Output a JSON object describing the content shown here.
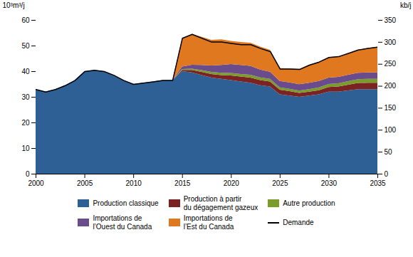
{
  "chart_data": {
    "type": "area",
    "stacked": true,
    "grid": false,
    "legend": "bottom",
    "ylabel": "10³m³/j",
    "y2label": "kb/j",
    "x": [
      2000,
      2001,
      2002,
      2003,
      2004,
      2005,
      2006,
      2007,
      2008,
      2009,
      2010,
      2011,
      2012,
      2013,
      2014,
      2015,
      2016,
      2017,
      2018,
      2019,
      2020,
      2021,
      2022,
      2023,
      2024,
      2025,
      2026,
      2027,
      2028,
      2029,
      2030,
      2031,
      2032,
      2033,
      2034,
      2035
    ],
    "xlim": [
      2000,
      2035
    ],
    "xticks": [
      2000,
      2005,
      2010,
      2015,
      2020,
      2025,
      2030,
      2035
    ],
    "ylim": [
      0,
      60
    ],
    "yticks": [
      0,
      10,
      20,
      30,
      40,
      50,
      60
    ],
    "y2lim": [
      0,
      350
    ],
    "y2ticks": [
      0,
      50,
      100,
      150,
      200,
      250,
      300,
      350
    ],
    "series": [
      {
        "name": "Production classique",
        "color": "#2E6096",
        "values": [
          33.0,
          32.0,
          33.0,
          34.5,
          36.5,
          40.0,
          40.5,
          40.0,
          38.5,
          36.5,
          35.0,
          35.5,
          36.0,
          36.5,
          36.5,
          40.0,
          39.5,
          38.5,
          37.5,
          37.0,
          36.5,
          36.0,
          35.5,
          34.5,
          34.0,
          31.0,
          30.5,
          30.0,
          30.5,
          31.0,
          32.0,
          32.0,
          32.5,
          33.0,
          33.0,
          33.0
        ]
      },
      {
        "name": "Production à partir\ndu dégagement gazeux",
        "color": "#7B2323",
        "values": [
          0.0,
          0.0,
          0.0,
          0.0,
          0.0,
          0.0,
          0.0,
          0.0,
          0.0,
          0.0,
          0.0,
          0.0,
          0.0,
          0.0,
          0.0,
          0.5,
          1.0,
          1.2,
          1.4,
          1.5,
          1.8,
          1.9,
          2.0,
          2.0,
          2.0,
          1.8,
          1.7,
          1.5,
          1.5,
          1.6,
          1.8,
          2.0,
          2.2,
          2.4,
          2.5,
          2.5
        ]
      },
      {
        "name": "Autre production",
        "color": "#7B9B2A",
        "values": [
          0.0,
          0.0,
          0.0,
          0.0,
          0.0,
          0.0,
          0.0,
          0.0,
          0.0,
          0.0,
          0.0,
          0.0,
          0.0,
          0.0,
          0.0,
          0.3,
          0.5,
          0.7,
          0.8,
          0.9,
          1.0,
          1.0,
          1.1,
          1.1,
          1.0,
          0.9,
          0.9,
          0.9,
          1.0,
          1.1,
          1.2,
          1.3,
          1.4,
          1.5,
          1.5,
          1.5
        ]
      },
      {
        "name": "Importations de\nl’Ouest du Canada",
        "color": "#6A4C8C",
        "values": [
          0.0,
          0.0,
          0.0,
          0.0,
          0.0,
          0.0,
          0.0,
          0.0,
          0.0,
          0.0,
          0.0,
          0.0,
          0.0,
          0.0,
          0.0,
          1.0,
          1.5,
          2.0,
          2.5,
          3.0,
          3.5,
          3.5,
          3.5,
          3.0,
          2.8,
          2.5,
          2.5,
          2.5,
          2.5,
          2.5,
          2.5,
          2.5,
          2.5,
          2.5,
          2.5,
          2.5
        ]
      },
      {
        "name": "Importations de\nl’Est du Canada",
        "color": "#E07820",
        "values": [
          0.0,
          0.0,
          0.0,
          0.0,
          0.0,
          0.0,
          0.0,
          0.0,
          0.0,
          0.0,
          0.0,
          0.0,
          0.0,
          0.0,
          0.0,
          11.0,
          12.0,
          11.0,
          10.0,
          10.0,
          9.0,
          9.0,
          9.0,
          9.0,
          8.5,
          5.0,
          5.5,
          6.0,
          7.0,
          7.5,
          8.0,
          8.0,
          8.5,
          9.0,
          9.5,
          10.0
        ]
      },
      {
        "name": "Demande",
        "type": "line",
        "color": "#000000",
        "values": [
          33.0,
          32.0,
          33.0,
          34.5,
          36.5,
          40.0,
          40.5,
          40.0,
          38.5,
          36.5,
          35.0,
          35.5,
          36.0,
          36.5,
          36.5,
          53.0,
          54.5,
          53.0,
          51.5,
          51.5,
          51.0,
          50.5,
          50.5,
          49.0,
          47.8,
          41.0,
          41.0,
          40.8,
          42.5,
          43.7,
          45.5,
          45.8,
          47.1,
          48.4,
          49.0,
          49.5
        ]
      }
    ]
  }
}
